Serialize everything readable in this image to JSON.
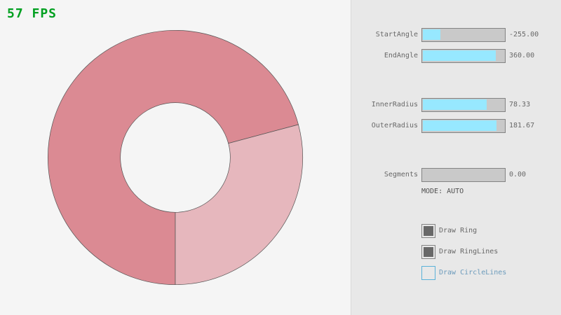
{
  "fps": "57 FPS",
  "ring": {
    "start_angle": -255,
    "end_angle": 360,
    "inner_radius": 78.33,
    "outer_radius": 181.67,
    "color_single": "#e6b7bd",
    "color_overlap": "#db8a93",
    "line_color": "#555555"
  },
  "controls": {
    "sliders": [
      {
        "label": "StartAngle",
        "value": "-255.00",
        "fraction": 0.217
      },
      {
        "label": "EndAngle",
        "value": "360.00",
        "fraction": 0.9
      },
      {
        "label": "InnerRadius",
        "value": "78.33",
        "fraction": 0.783
      },
      {
        "label": "OuterRadius",
        "value": "181.67",
        "fraction": 0.908
      },
      {
        "label": "Segments",
        "value": "0.00",
        "fraction": 0
      }
    ],
    "mode": "MODE: AUTO",
    "checkboxes": [
      {
        "label": "Draw Ring",
        "checked": true
      },
      {
        "label": "Draw RingLines",
        "checked": true
      },
      {
        "label": "Draw CircleLines",
        "checked": false
      }
    ]
  }
}
